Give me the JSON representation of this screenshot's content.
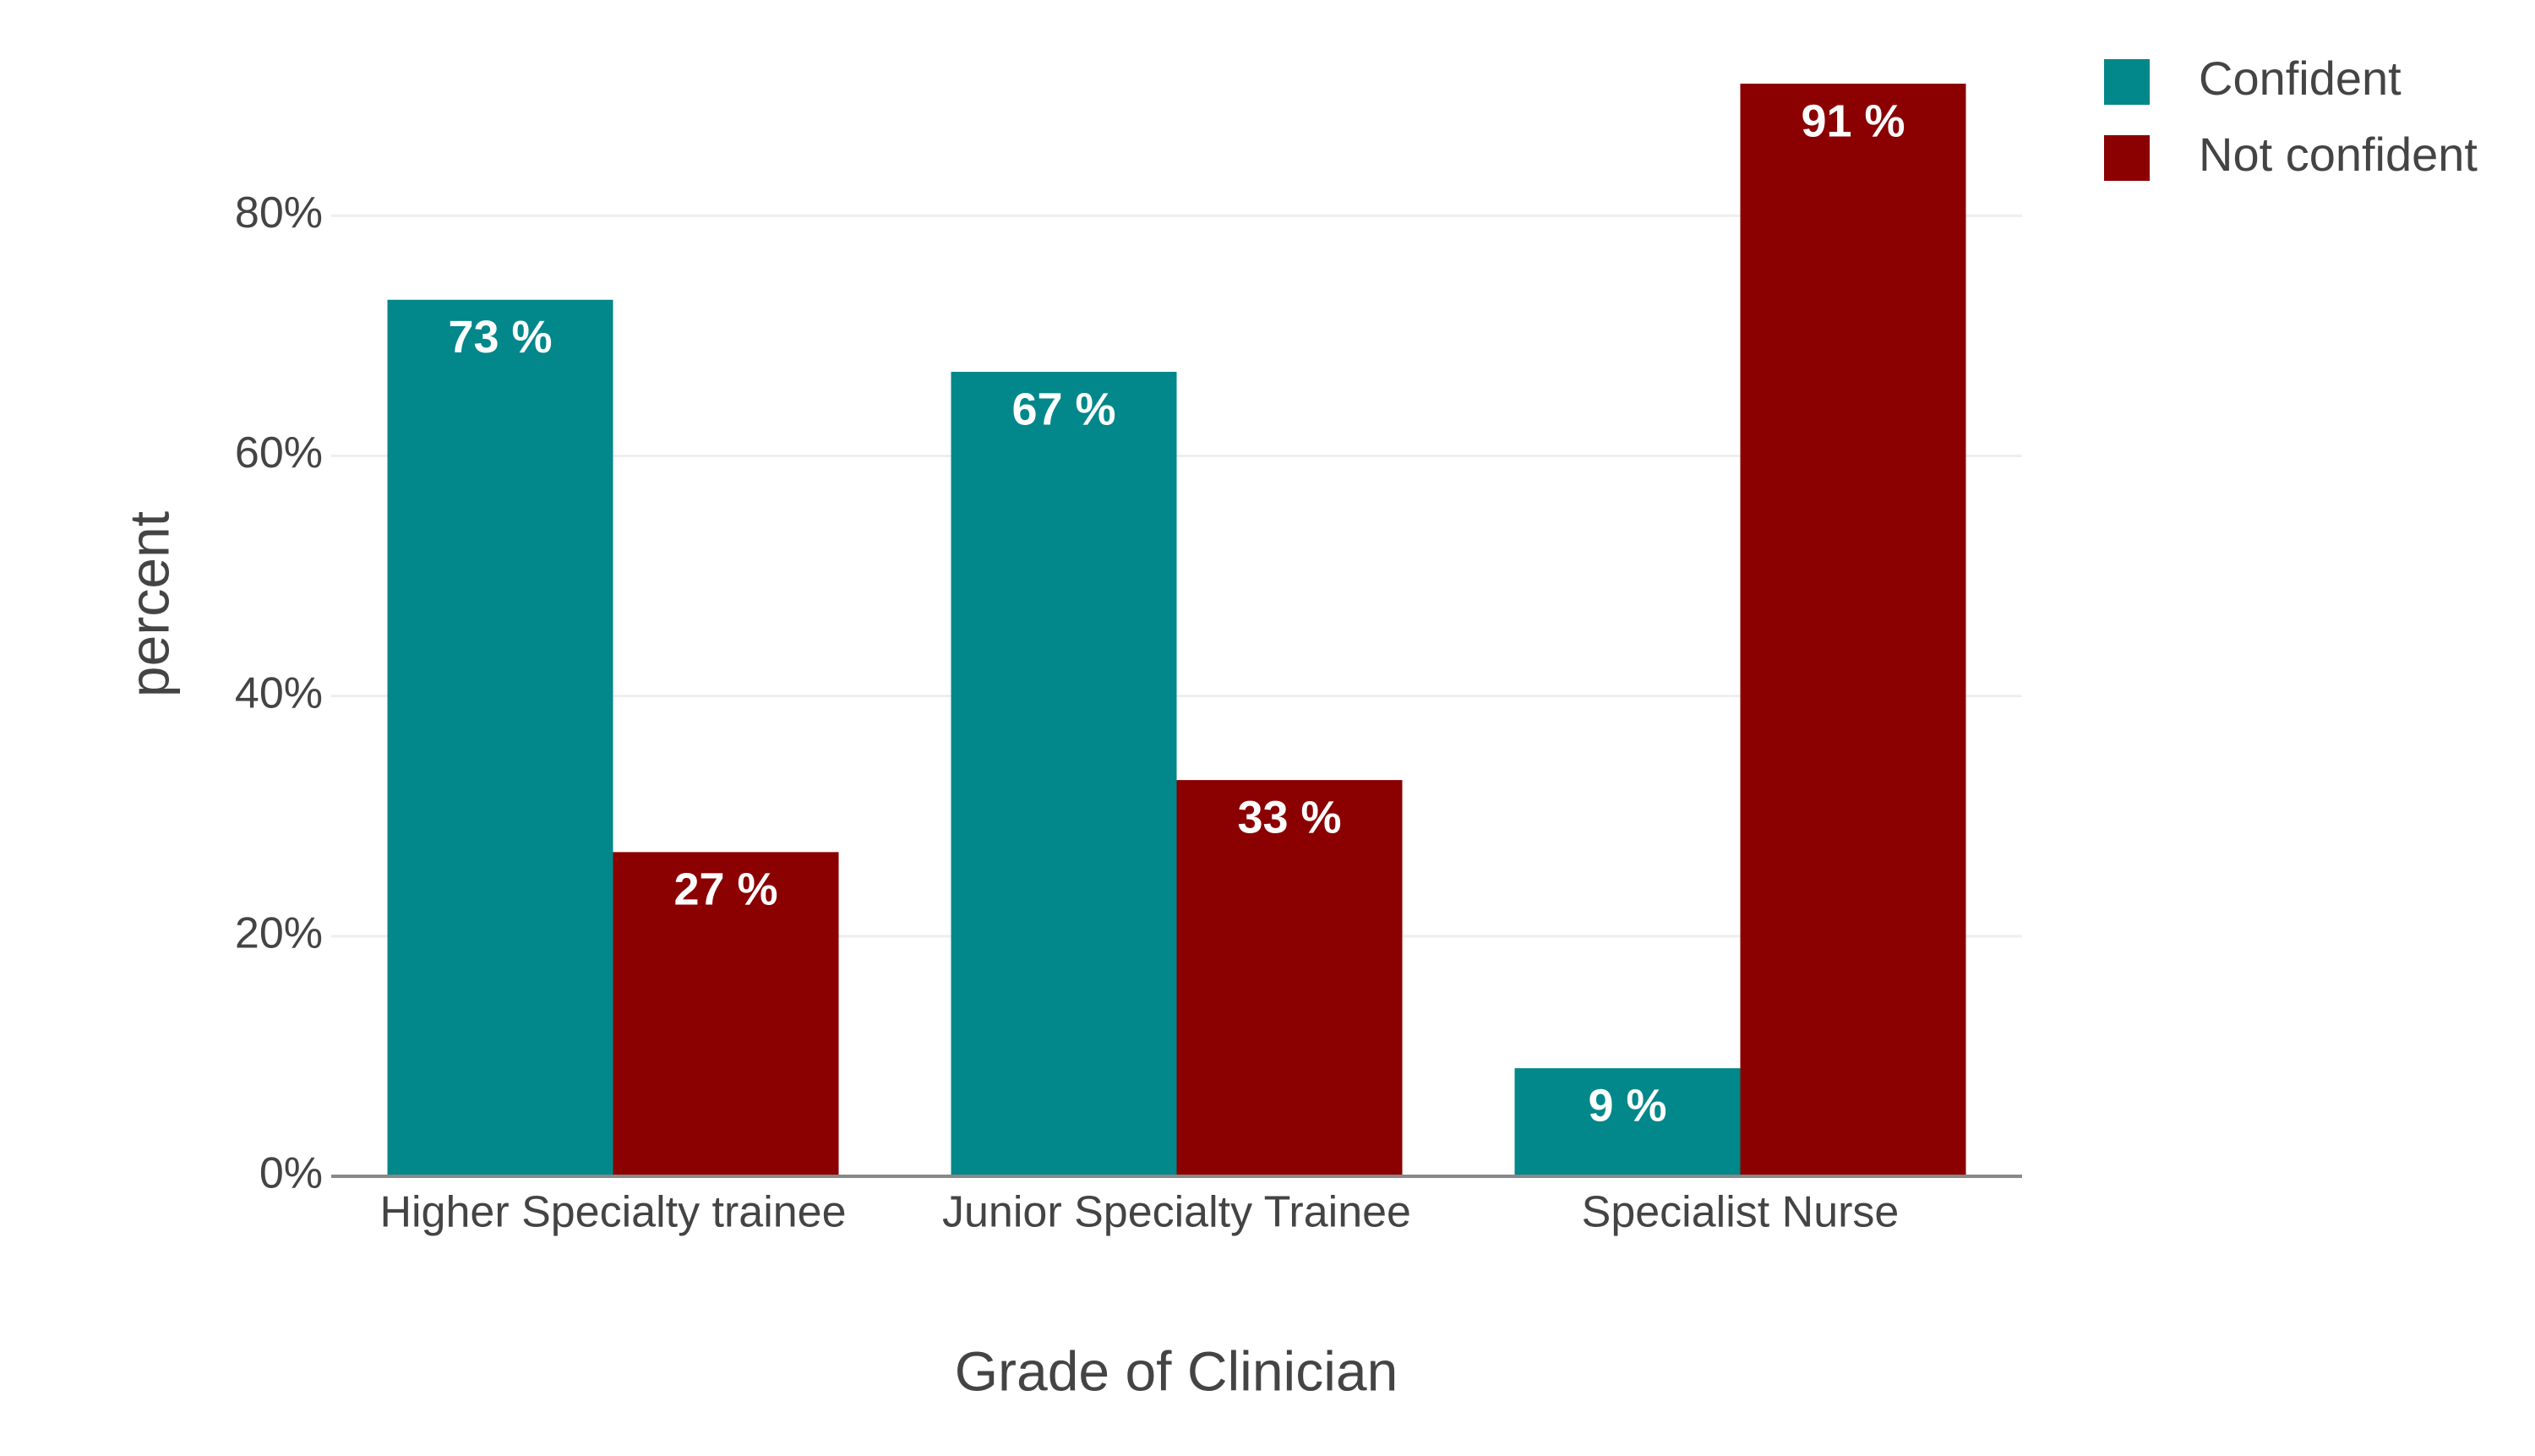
{
  "chart_data": {
    "type": "bar",
    "x_label": "Grade of Clinician",
    "y_label": "percent",
    "categories": [
      "Higher Specialty trainee",
      "Junior Specialty Trainee",
      "Specialist Nurse"
    ],
    "series": [
      {
        "name": "Confident",
        "color": "#02878a",
        "values": [
          73,
          67,
          9
        ],
        "value_labels": [
          "73 %",
          "67 %",
          "9 %"
        ]
      },
      {
        "name": "Not confident",
        "color": "#8b0000",
        "values": [
          27,
          33,
          91
        ],
        "value_labels": [
          "27 %",
          "33 %",
          "91 %"
        ]
      }
    ],
    "ylim": [
      0,
      91
    ],
    "yticks": [
      {
        "value": 0,
        "label": "0%"
      },
      {
        "value": 20,
        "label": "20%"
      },
      {
        "value": 40,
        "label": "40%"
      },
      {
        "value": 60,
        "label": "60%"
      },
      {
        "value": 80,
        "label": "80%"
      }
    ],
    "grid": true,
    "legend": "top-right"
  }
}
